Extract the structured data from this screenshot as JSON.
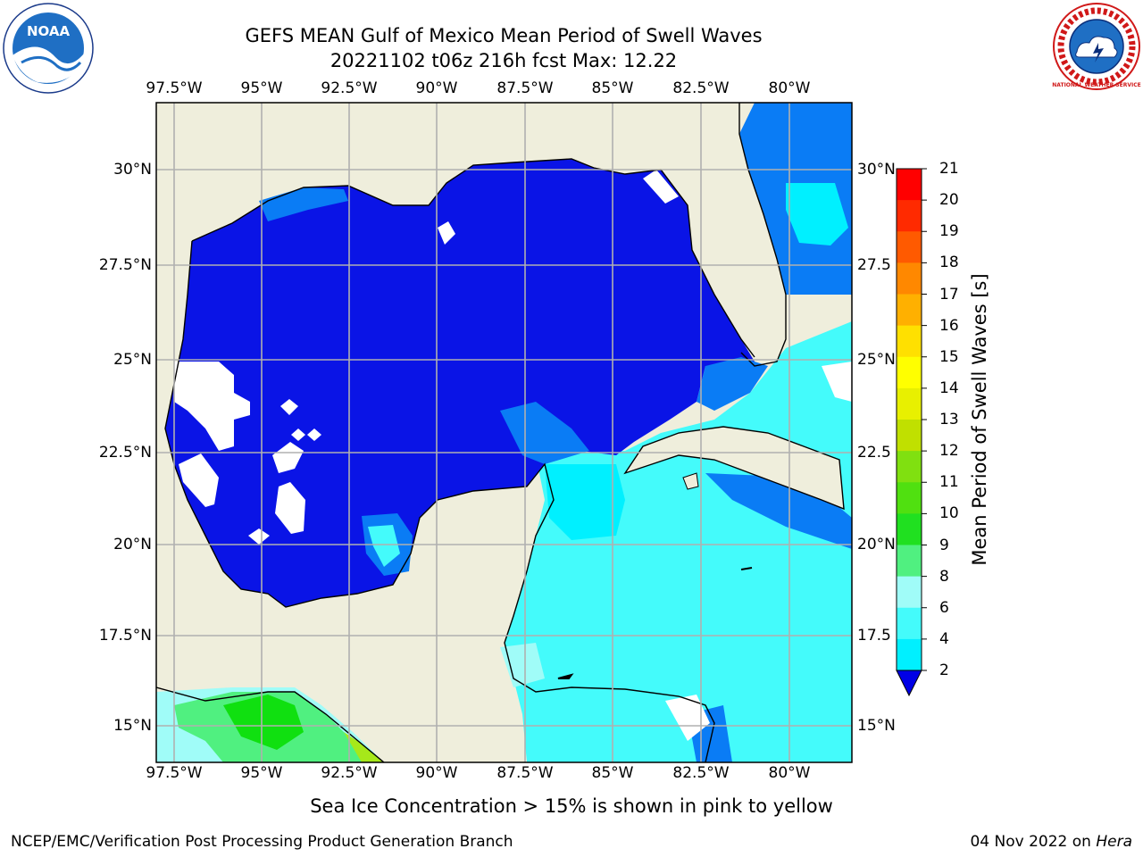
{
  "title": {
    "line1": "GEFS MEAN Gulf of Mexico Mean Period of Swell Waves",
    "line2": "20221102 t06z 216h fcst   Max: 12.22"
  },
  "map": {
    "lon_ticks": [
      "97.5°W",
      "95°W",
      "92.5°W",
      "90°W",
      "87.5°W",
      "85°W",
      "82.5°W",
      "80°W"
    ],
    "lat_ticks_left": [
      "30°N",
      "27.5°N",
      "25°N",
      "22.5°N",
      "20°N",
      "17.5°N",
      "15°N"
    ],
    "lat_ticks_right": [
      "30°N",
      "27.5",
      "25°N",
      "22.5",
      "20°N",
      "17.5",
      "15°N"
    ],
    "colors": {
      "land": "#efeedc",
      "grid": "#b0b0b0",
      "dark_blue": "#0a14e6",
      "blue": "#0a7cf5",
      "cyan": "#00f0ff",
      "light_cyan": "#44fbfb",
      "pale_cyan": "#a0fcf8",
      "green": "#3ef050",
      "bright_green": "#10e010",
      "yellow_green": "#a6e81a"
    }
  },
  "colorbar": {
    "label": "Mean Period of Swell Waves [s]",
    "ticks": [
      "21",
      "20",
      "19",
      "18",
      "17",
      "16",
      "15",
      "14",
      "13",
      "12",
      "11",
      "10",
      "9",
      "8",
      "6",
      "4",
      "2"
    ],
    "colors": [
      "#0000e6",
      "#0a7cf5",
      "#00f0ff",
      "#44fbfb",
      "#a0fcf8",
      "#50f080",
      "#20e020",
      "#50e010",
      "#80e010",
      "#c0e000",
      "#e8f000",
      "#ffff00",
      "#ffe000",
      "#ffb000",
      "#ff8800",
      "#ff5a00",
      "#ff2a00",
      "#ff0000"
    ]
  },
  "caption": "Sea Ice Concentration > 15% is shown in pink to yellow",
  "footer": {
    "left": "NCEP/EMC/Verification Post Processing Product Generation Branch",
    "date": "04 Nov 2022 on ",
    "machine": "Hera"
  },
  "logos": {
    "noaa_text": "NOAA",
    "nws_text": "NATIONAL WEATHER SERVICE"
  }
}
